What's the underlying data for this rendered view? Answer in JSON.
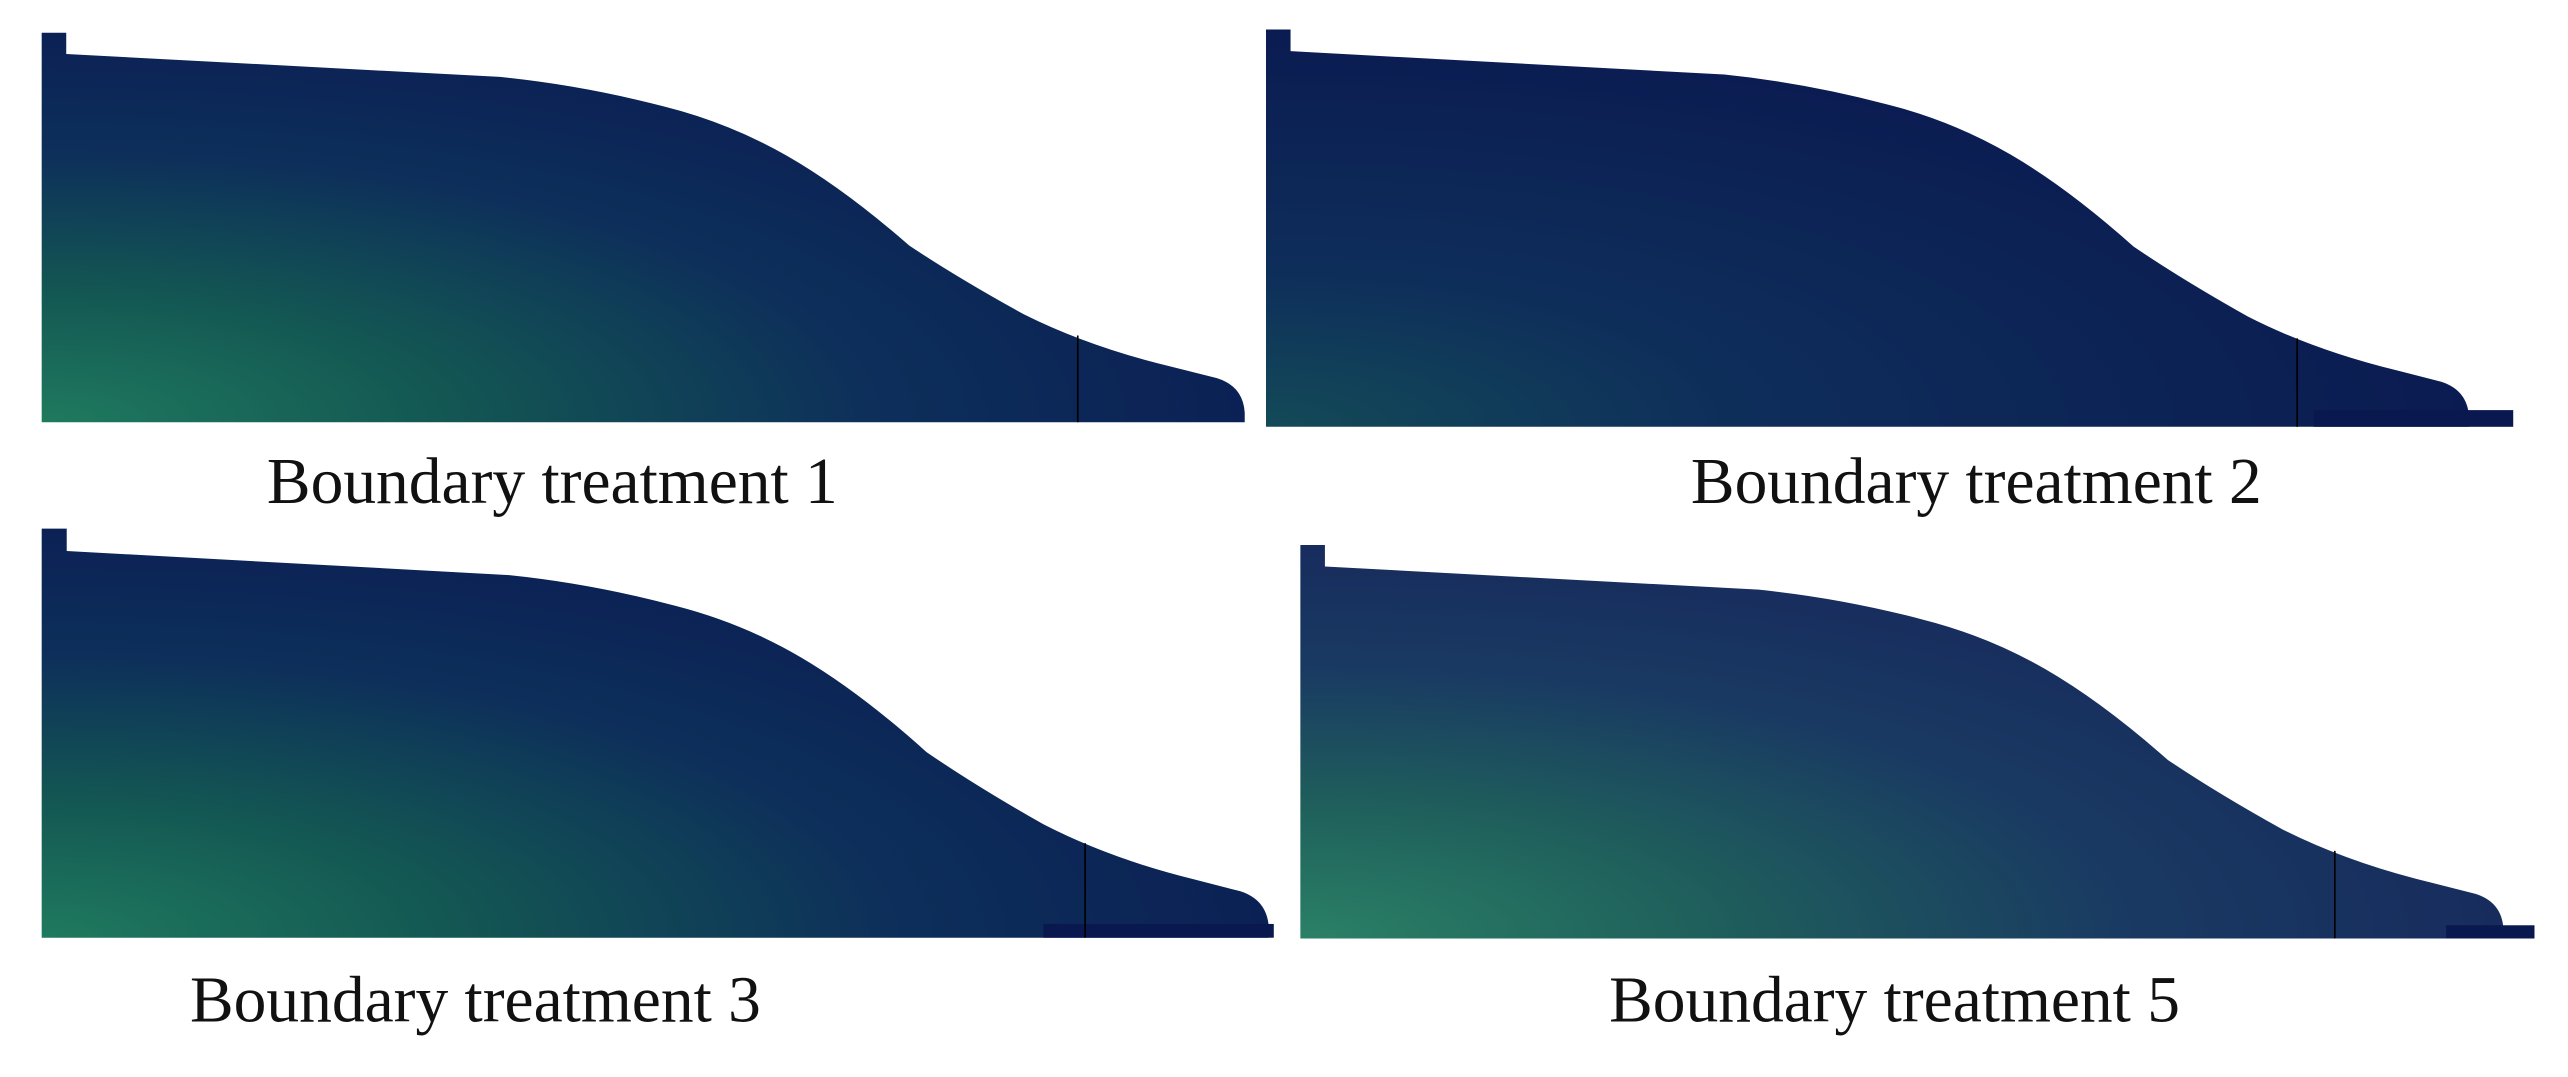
{
  "panels": [
    {
      "caption": "Boundary treatment 1"
    },
    {
      "caption": "Boundary treatment 2"
    },
    {
      "caption": "Boundary treatment 3"
    },
    {
      "caption": "Boundary treatment 5"
    }
  ]
}
